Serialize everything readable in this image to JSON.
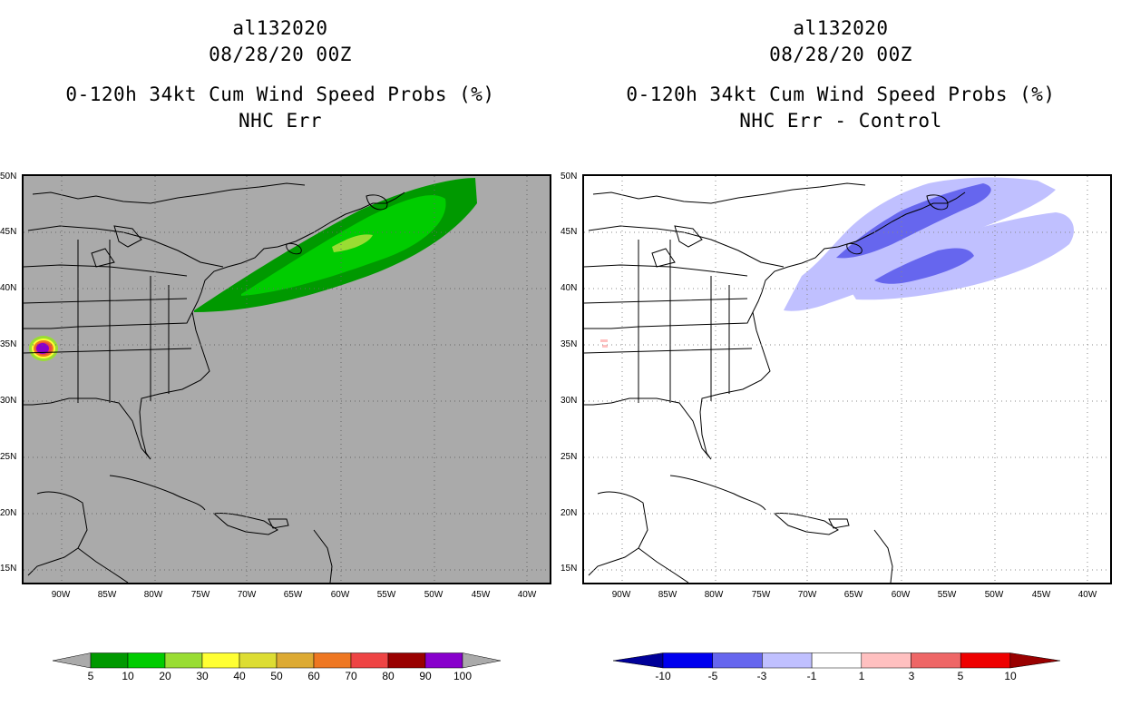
{
  "left_panel": {
    "storm_id": "al132020",
    "datetime": "08/28/20 00Z",
    "product": "0-120h 34kt Cum Wind Speed Probs (%)",
    "subtitle": "NHC Err",
    "background": "#aaaaaa",
    "lat_labels": [
      "50N",
      "45N",
      "40N",
      "35N",
      "30N",
      "25N",
      "20N",
      "15N"
    ],
    "lon_labels": [
      "90W",
      "85W",
      "80W",
      "75W",
      "70W",
      "65W",
      "60W",
      "55W",
      "50W",
      "45W",
      "40W"
    ],
    "colorbar": {
      "colors": [
        "#009900",
        "#00cc00",
        "#99dd33",
        "#ffff33",
        "#dddd33",
        "#ddaa33",
        "#ee7722",
        "#ee4444",
        "#990000",
        "#8800cc"
      ],
      "labels": [
        "5",
        "10",
        "20",
        "30",
        "40",
        "50",
        "60",
        "70",
        "80",
        "90",
        "100"
      ]
    }
  },
  "right_panel": {
    "storm_id": "al132020",
    "datetime": "08/28/20 00Z",
    "product": "0-120h 34kt Cum Wind Speed Probs (%)",
    "subtitle": "NHC Err - Control",
    "background": "#ffffff",
    "lat_labels": [
      "50N",
      "45N",
      "40N",
      "35N",
      "30N",
      "25N",
      "20N",
      "15N"
    ],
    "lon_labels": [
      "90W",
      "85W",
      "80W",
      "75W",
      "70W",
      "65W",
      "60W",
      "55W",
      "50W",
      "45W",
      "40W"
    ],
    "colorbar": {
      "colors": [
        "#0000ee",
        "#6666ee",
        "#c0c0ff",
        "#ffffff",
        "#ffc0c0",
        "#ee6666",
        "#ee0000"
      ],
      "end_low": "#000099",
      "end_high": "#990000",
      "labels": [
        "-10",
        "-5",
        "-3",
        "-1",
        "1",
        "3",
        "5",
        "10"
      ]
    }
  }
}
